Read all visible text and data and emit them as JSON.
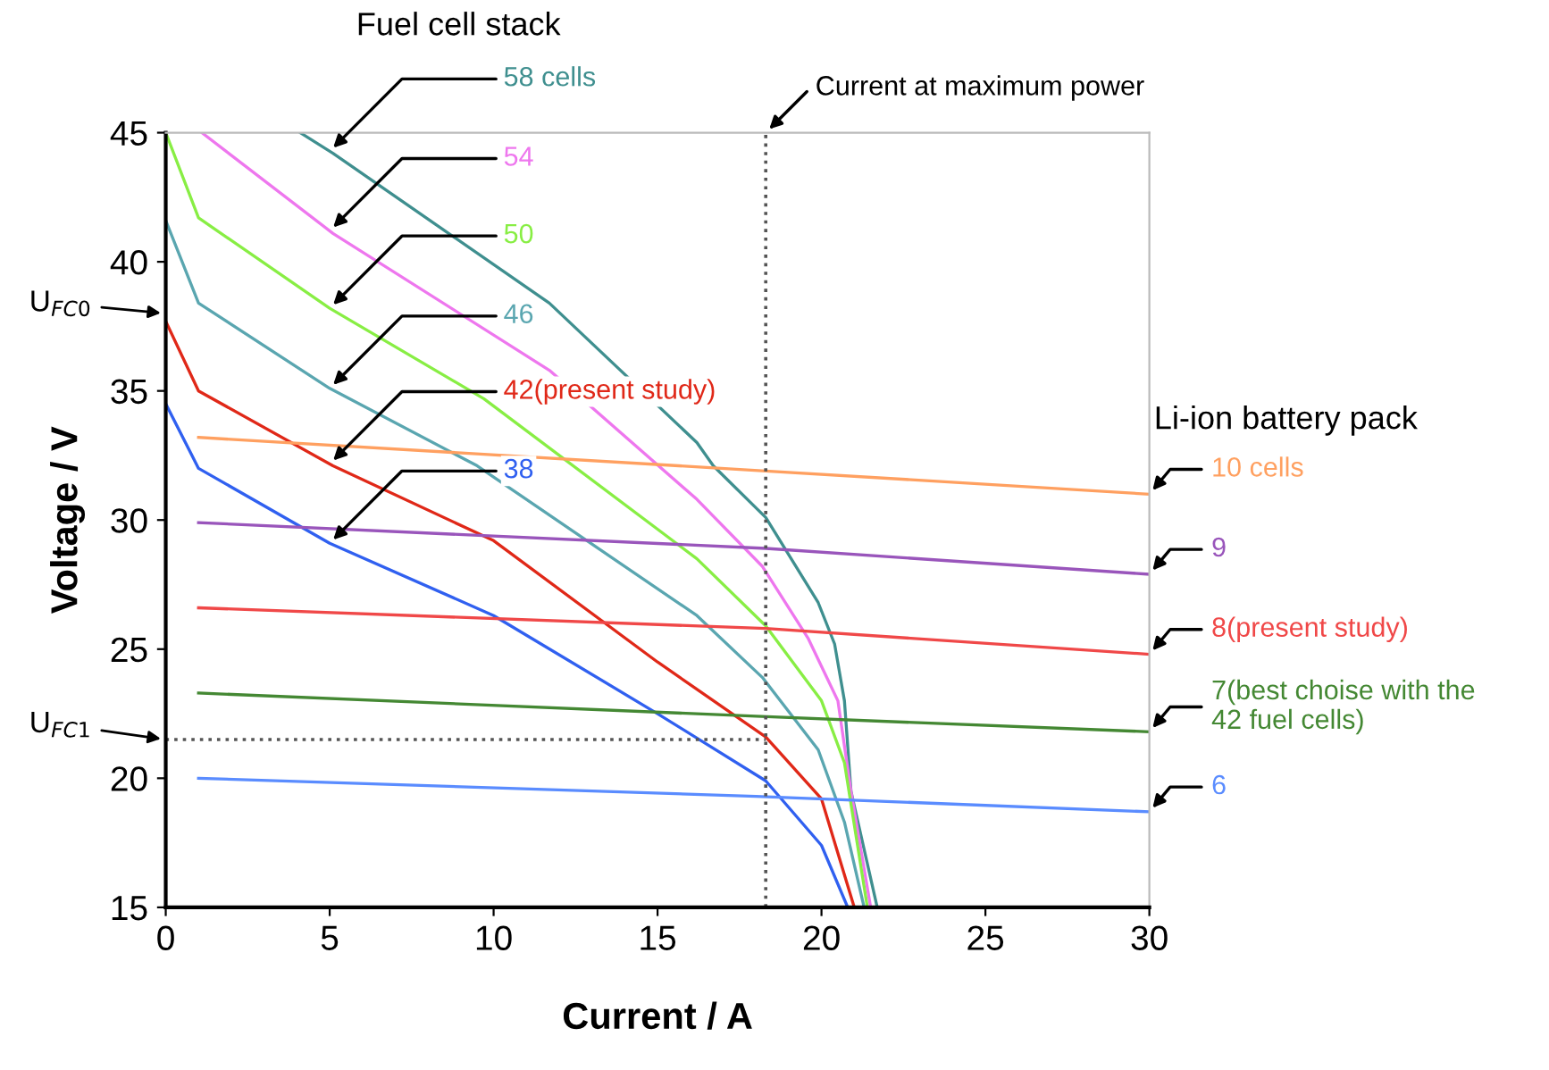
{
  "chart_data": {
    "type": "line",
    "xlabel": "Current / A",
    "ylabel": "Voltage / V",
    "xlim": [
      0,
      30
    ],
    "ylim": [
      15,
      45
    ],
    "xticks": [
      0,
      5,
      10,
      15,
      20,
      25,
      30
    ],
    "yticks": [
      15,
      20,
      25,
      30,
      35,
      40,
      45
    ],
    "grid": false,
    "legend": false,
    "marker": "none",
    "line_style": "solid",
    "series": [
      {
        "name": "58 cells",
        "color": "#3f8f8f",
        "x": [
          4.1,
          5.1,
          11.7,
          16.2,
          16.7,
          18.3,
          19.9,
          20.4,
          20.7,
          20.9,
          21.7
        ],
        "values": [
          45,
          44.2,
          38.4,
          33.0,
          32.1,
          30.1,
          26.8,
          25.2,
          23.0,
          19.5,
          15
        ]
      },
      {
        "name": "54",
        "color": "#ee77ee",
        "x": [
          1.1,
          5.1,
          11.7,
          16.2,
          18.2,
          19.6,
          20.5,
          20.9,
          21.5
        ],
        "values": [
          45,
          41.1,
          35.8,
          30.8,
          28.2,
          25.4,
          23.0,
          19.5,
          15
        ]
      },
      {
        "name": "50",
        "color": "#88ee44",
        "x": [
          0,
          1,
          5,
          9.7,
          16.2,
          18.3,
          20,
          20.7,
          21.4
        ],
        "values": [
          45,
          41.7,
          38.2,
          34.7,
          28.5,
          25.9,
          23.0,
          20.6,
          15
        ]
      },
      {
        "name": "46",
        "color": "#5aa6b0",
        "x": [
          0,
          1,
          5,
          9.5,
          16.2,
          18.2,
          19.9,
          20.7,
          21.3
        ],
        "values": [
          41.6,
          38.4,
          35.1,
          32.1,
          26.3,
          23.9,
          21.1,
          18.3,
          15
        ]
      },
      {
        "name": "42(present study)",
        "color": "#e02818",
        "x": [
          0,
          1,
          5.1,
          10,
          15,
          18.3,
          20,
          21.0
        ],
        "values": [
          37.7,
          35.0,
          32.1,
          29.2,
          24.5,
          21.6,
          19.2,
          15
        ]
      },
      {
        "name": "38",
        "color": "#3060f0",
        "x": [
          0,
          1,
          5,
          10,
          15,
          18.3,
          20,
          20.8
        ],
        "values": [
          34.5,
          32.0,
          29.1,
          26.3,
          22.5,
          19.9,
          17.4,
          15
        ]
      },
      {
        "name": "10 cells",
        "color": "#ffa060",
        "x": [
          1,
          18.3,
          30
        ],
        "values": [
          33.2,
          31.9,
          31.0
        ]
      },
      {
        "name": "9",
        "color": "#9955bb",
        "x": [
          1,
          18.3,
          30
        ],
        "values": [
          29.9,
          28.9,
          27.9
        ]
      },
      {
        "name": "8(present study)",
        "color": "#f04848",
        "x": [
          1,
          18.3,
          30
        ],
        "values": [
          26.6,
          25.8,
          24.8
        ]
      },
      {
        "name": "7(best choise with the\n42 fuel cells)",
        "color": "#448833",
        "x": [
          1,
          18,
          30
        ],
        "values": [
          23.3,
          22.4,
          21.8
        ]
      },
      {
        "name": "6",
        "color": "#5a8cff",
        "x": [
          1,
          18,
          30
        ],
        "values": [
          20.0,
          19.3,
          18.7
        ]
      }
    ],
    "ref_lines": [
      {
        "axis": "x",
        "value": 18.3,
        "label": "Current at maximum power",
        "line_style": "dotted",
        "color": "#555555"
      },
      {
        "axis": "y",
        "value": 21.5,
        "label": "U$_{FC1}$",
        "line_style": "dotted",
        "color": "#555555"
      }
    ],
    "annotations": [
      "Fuel cell stack",
      "Li-ion battery pack",
      {
        "text": "U$_{FC0}$",
        "x": 0,
        "y": 38
      }
    ]
  }
}
